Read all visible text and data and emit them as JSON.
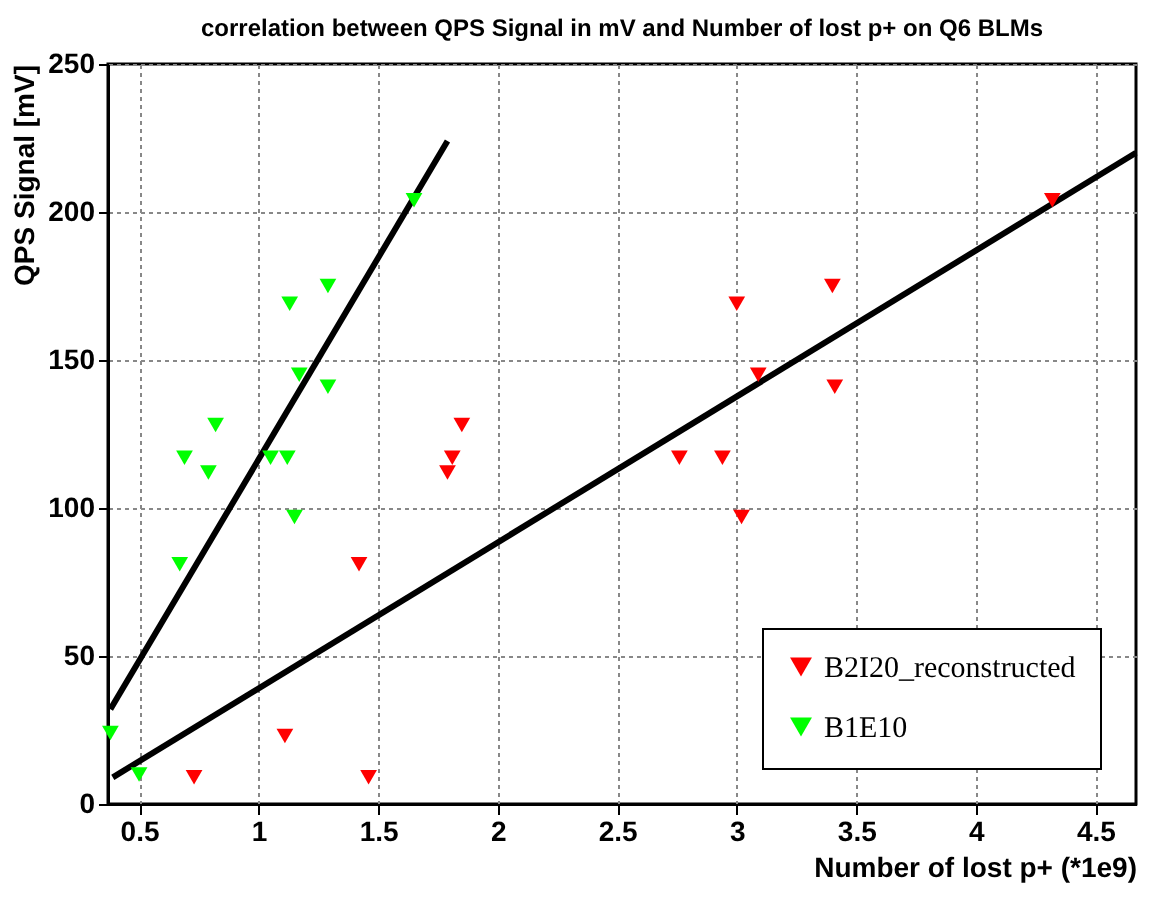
{
  "chart_data": {
    "type": "scatter",
    "title": "correlation between QPS Signal in mV and Number of lost p+ on Q6 BLMs",
    "xlabel": "Number of lost p+ (*1e9)",
    "ylabel": "QPS Signal [mV]",
    "xlim": [
      0.37,
      4.67
    ],
    "xticks": [
      0.5,
      1,
      1.5,
      2,
      2.5,
      3,
      3.5,
      4,
      4.5
    ],
    "ylim": [
      0,
      250
    ],
    "yticks": [
      0,
      50,
      100,
      150,
      200,
      250
    ],
    "grid": true,
    "legend": "bottom right",
    "marker": "triangle",
    "series": [
      {
        "name": "B2I20_reconstructed",
        "color": "#ff0000",
        "x": [
          0.73,
          1.11,
          1.42,
          1.46,
          1.79,
          1.81,
          1.85,
          2.76,
          2.94,
          3.0,
          3.02,
          3.09,
          3.4,
          3.41,
          4.32
        ],
        "values": [
          9,
          23,
          81,
          9,
          112,
          117,
          128,
          117,
          117,
          169,
          97,
          145,
          175,
          141,
          204
        ]
      },
      {
        "name": "B1E10",
        "color": "#00ff00",
        "x": [
          0.38,
          0.5,
          0.67,
          0.69,
          0.79,
          0.82,
          1.05,
          1.12,
          1.13,
          1.15,
          1.17,
          1.29,
          1.29,
          1.65
        ],
        "values": [
          24,
          10,
          81,
          117,
          112,
          128,
          117,
          117,
          169,
          97,
          145,
          175,
          141,
          204
        ]
      },
      {
        "type": "line",
        "color": "#000000",
        "line_style": "solid",
        "marker": "none",
        "x": [
          0.38,
          1.79
        ],
        "values": [
          32,
          224
        ]
      },
      {
        "type": "line",
        "color": "#000000",
        "line_style": "solid",
        "marker": "none",
        "x": [
          0.39,
          4.67
        ],
        "values": [
          9,
          220
        ]
      }
    ]
  }
}
